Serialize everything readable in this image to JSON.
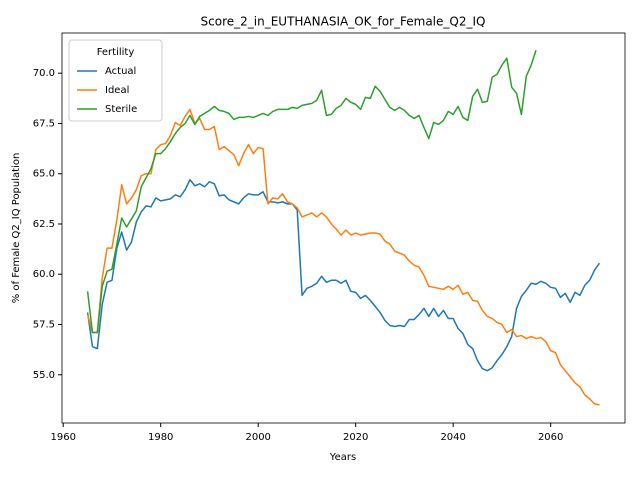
{
  "chart_data": {
    "type": "line",
    "title": "Score_2_in_EUTHANASIA_OK_for_Female_Q2_IQ",
    "x_label": "Years",
    "y_label": "% of Female Q2_IQ Population",
    "legend_title": "Fertility",
    "legend_loc": "upper left",
    "x": [
      1965,
      1966,
      1967,
      1968,
      1969,
      1970,
      1971,
      1972,
      1973,
      1974,
      1975,
      1976,
      1977,
      1978,
      1979,
      1980,
      1981,
      1982,
      1983,
      1984,
      1985,
      1986,
      1987,
      1988,
      1989,
      1990,
      1991,
      1992,
      1993,
      1994,
      1995,
      1996,
      1997,
      1998,
      1999,
      2000,
      2001,
      2002,
      2003,
      2004,
      2005,
      2006,
      2007,
      2008,
      2009,
      2010,
      2011,
      2012,
      2013,
      2014,
      2015,
      2016,
      2017,
      2018,
      2019,
      2020,
      2021,
      2022,
      2023,
      2024,
      2025,
      2026,
      2027,
      2028,
      2029,
      2030,
      2031,
      2032,
      2033,
      2034,
      2035,
      2036,
      2037,
      2038,
      2039,
      2040,
      2041,
      2042,
      2043,
      2044,
      2045,
      2046,
      2047,
      2048,
      2049,
      2050,
      2051,
      2052,
      2053,
      2054,
      2055,
      2056,
      2057,
      2058,
      2059,
      2060,
      2061,
      2062,
      2063,
      2064,
      2065,
      2066,
      2067,
      2068,
      2069,
      2070
    ],
    "series": [
      {
        "name": "Actual",
        "color": "#1f77b4",
        "values": [
          58.1,
          56.4,
          56.3,
          58.5,
          59.6,
          59.7,
          61.3,
          62.1,
          61.2,
          61.6,
          62.6,
          63.1,
          63.4,
          63.35,
          63.8,
          63.65,
          63.7,
          63.75,
          63.95,
          63.85,
          64.2,
          64.7,
          64.4,
          64.5,
          64.35,
          64.6,
          64.5,
          63.9,
          63.95,
          63.7,
          63.6,
          63.5,
          63.8,
          64.0,
          63.95,
          63.95,
          64.1,
          63.6,
          63.6,
          63.55,
          63.6,
          63.5,
          63.5,
          63.2,
          58.95,
          59.3,
          59.4,
          59.55,
          59.9,
          59.6,
          59.7,
          59.7,
          59.55,
          59.7,
          59.15,
          59.1,
          58.8,
          58.95,
          58.7,
          58.4,
          58.1,
          57.7,
          57.45,
          57.4,
          57.45,
          57.4,
          57.75,
          57.75,
          58.0,
          58.3,
          57.9,
          58.3,
          57.9,
          58.2,
          57.8,
          57.8,
          57.3,
          57.05,
          56.5,
          56.3,
          55.7,
          55.3,
          55.2,
          55.35,
          55.7,
          56.0,
          56.4,
          56.9,
          58.3,
          58.9,
          59.2,
          59.55,
          59.5,
          59.65,
          59.55,
          59.35,
          59.3,
          58.85,
          59.05,
          58.6,
          59.1,
          58.95,
          59.45,
          59.7,
          60.2,
          60.55
        ]
      },
      {
        "name": "Ideal",
        "color": "#ff7f0e",
        "values": [
          58.0,
          57.1,
          57.1,
          59.8,
          61.3,
          61.3,
          62.7,
          64.45,
          63.5,
          63.8,
          64.2,
          64.9,
          65.0,
          65.0,
          66.2,
          66.45,
          66.5,
          66.9,
          67.55,
          67.4,
          67.85,
          68.2,
          67.5,
          67.75,
          67.2,
          67.2,
          67.35,
          66.2,
          66.35,
          66.15,
          65.95,
          65.4,
          66.0,
          66.45,
          66.0,
          66.3,
          66.25,
          63.5,
          63.8,
          63.75,
          64.0,
          63.6,
          63.5,
          63.3,
          62.85,
          62.95,
          63.05,
          62.85,
          63.05,
          62.85,
          62.5,
          62.25,
          61.95,
          62.2,
          61.95,
          62.05,
          61.95,
          62.0,
          62.05,
          62.05,
          62.0,
          61.65,
          61.5,
          61.15,
          61.05,
          60.95,
          60.65,
          60.45,
          60.35,
          59.95,
          59.4,
          59.35,
          59.3,
          59.25,
          59.4,
          59.25,
          59.45,
          59.0,
          59.1,
          58.7,
          58.65,
          58.2,
          57.9,
          57.8,
          57.6,
          57.5,
          57.1,
          57.25,
          56.9,
          56.95,
          56.8,
          56.9,
          56.8,
          56.85,
          56.65,
          56.2,
          56.1,
          55.5,
          55.2,
          54.9,
          54.6,
          54.4,
          54.0,
          53.8,
          53.55,
          53.5
        ]
      },
      {
        "name": "Sterile",
        "color": "#2ca02c",
        "values": [
          59.15,
          57.1,
          57.1,
          59.4,
          60.15,
          60.25,
          61.5,
          62.8,
          62.35,
          62.75,
          63.15,
          64.35,
          64.8,
          65.25,
          66.0,
          66.0,
          66.25,
          66.6,
          67.0,
          67.3,
          67.5,
          67.9,
          67.45,
          67.85,
          68.0,
          68.15,
          68.35,
          68.15,
          68.1,
          68.0,
          67.7,
          67.8,
          67.8,
          67.85,
          67.8,
          67.9,
          68.0,
          67.9,
          68.1,
          68.2,
          68.2,
          68.2,
          68.3,
          68.25,
          68.4,
          68.45,
          68.5,
          68.65,
          69.15,
          67.9,
          67.95,
          68.25,
          68.4,
          68.75,
          68.55,
          68.45,
          68.2,
          68.8,
          68.75,
          69.35,
          69.1,
          68.7,
          68.3,
          68.15,
          68.3,
          68.15,
          67.9,
          67.75,
          67.9,
          67.3,
          66.75,
          67.55,
          67.45,
          67.65,
          68.1,
          67.95,
          68.35,
          67.8,
          67.65,
          68.85,
          69.2,
          68.55,
          68.6,
          69.8,
          69.95,
          70.4,
          70.75,
          69.3,
          69.0,
          67.95,
          69.85,
          70.4,
          71.15,
          null,
          null,
          null,
          null,
          null,
          null,
          null,
          null,
          null,
          null,
          null,
          null,
          null
        ]
      }
    ],
    "xlim": [
      1959.75,
      2075.25
    ],
    "xticks": [
      1960,
      1980,
      2000,
      2020,
      2040,
      2060
    ],
    "ylim": [
      52.6,
      72.0
    ],
    "yticks": [
      {
        "value": 55,
        "label": "55.0"
      },
      {
        "value": 57.5,
        "label": "57.5"
      },
      {
        "value": 60,
        "label": "60.0"
      },
      {
        "value": 62.5,
        "label": "62.5"
      },
      {
        "value": 65,
        "label": "65.0"
      },
      {
        "value": 67.5,
        "label": "67.5"
      },
      {
        "value": 70,
        "label": "70.0"
      }
    ],
    "grid": false
  }
}
